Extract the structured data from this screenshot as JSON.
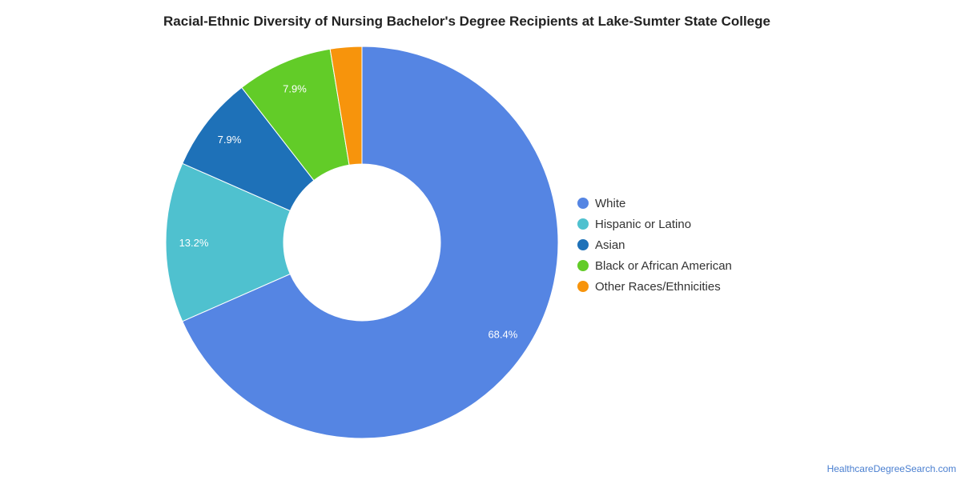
{
  "title": "Racial-Ethnic Diversity of Nursing Bachelor's Degree Recipients at Lake-Sumter State College",
  "watermark": "HealthcareDegreeSearch.com",
  "chart_data": {
    "type": "pie",
    "donut": true,
    "legend_position": "right",
    "slices": [
      {
        "label": "White",
        "value": 68.4,
        "display": "68.4%",
        "color": "#5585e3"
      },
      {
        "label": "Hispanic or Latino",
        "value": 13.2,
        "display": "13.2%",
        "color": "#4fc1cf"
      },
      {
        "label": "Asian",
        "value": 7.9,
        "display": "7.9%",
        "color": "#1e71b8"
      },
      {
        "label": "Black or African American",
        "value": 7.9,
        "display": "7.9%",
        "color": "#62cc28"
      },
      {
        "label": "Other Races/Ethnicities",
        "value": 2.6,
        "display": "",
        "color": "#f7940c"
      }
    ]
  }
}
